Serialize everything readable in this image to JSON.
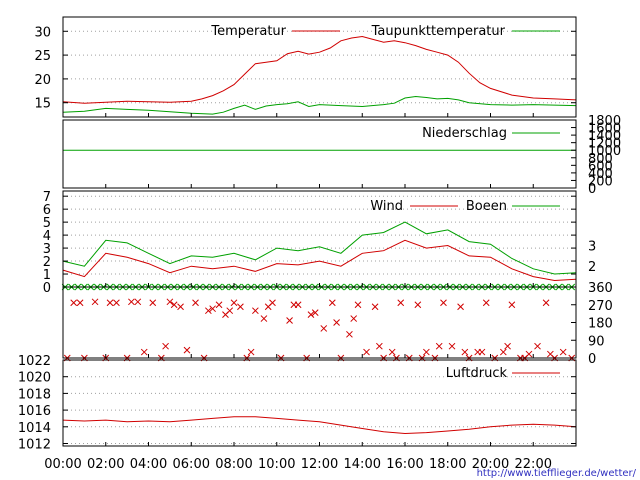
{
  "credit": "http://www.tiefflieger.de/wetter/",
  "colors": {
    "red": "#d00000",
    "green": "#00a000",
    "grid": "#a0a0a0",
    "axis": "#000000",
    "credit": "#3030c0"
  },
  "chart_data": [
    {
      "type": "line",
      "panel": "temperature",
      "x_range_hours": [
        0,
        24
      ],
      "ylim": [
        12,
        33
      ],
      "yticks": [
        15,
        20,
        25,
        30
      ],
      "grid": true,
      "legend_placement": "top",
      "series": [
        {
          "name": "Temperatur",
          "color": "#d00000",
          "x": [
            0,
            1,
            2,
            3,
            4,
            5,
            6,
            6.5,
            7,
            7.5,
            8,
            8.5,
            9,
            9.5,
            10,
            10.5,
            11,
            11.5,
            12,
            12.5,
            13,
            13.5,
            14,
            14.5,
            15,
            15.5,
            16,
            16.5,
            17,
            17.5,
            18,
            18.5,
            19,
            19.5,
            20,
            21,
            22,
            23,
            24
          ],
          "values": [
            15.2,
            14.9,
            15.1,
            15.3,
            15.2,
            15.1,
            15.3,
            15.8,
            16.5,
            17.5,
            18.8,
            21.0,
            23.2,
            23.5,
            23.8,
            25.3,
            25.8,
            25.2,
            25.6,
            26.5,
            28.0,
            28.6,
            28.9,
            28.3,
            27.7,
            28.0,
            27.6,
            27.0,
            26.2,
            25.6,
            25.0,
            23.5,
            21.2,
            19.2,
            18.0,
            16.6,
            16.0,
            15.8,
            15.6
          ]
        },
        {
          "name": "Taupunkttemperatur",
          "color": "#00a000",
          "x": [
            0,
            1,
            2,
            3,
            4,
            5,
            6,
            7,
            7.5,
            8,
            8.5,
            9,
            9.5,
            10,
            10.5,
            11,
            11.5,
            12,
            13,
            14,
            15,
            15.5,
            16,
            16.5,
            17,
            17.5,
            18,
            18.5,
            19,
            20,
            21,
            22,
            23,
            24
          ],
          "values": [
            13.0,
            13.2,
            13.8,
            13.6,
            13.4,
            13.1,
            12.8,
            12.6,
            13.0,
            13.8,
            14.5,
            13.6,
            14.3,
            14.6,
            14.8,
            15.2,
            14.2,
            14.6,
            14.4,
            14.2,
            14.6,
            14.9,
            16.0,
            16.3,
            16.1,
            15.8,
            15.9,
            15.6,
            15.0,
            14.6,
            14.5,
            14.6,
            14.5,
            14.4
          ]
        }
      ]
    },
    {
      "type": "line",
      "panel": "precipitation",
      "x_range_hours": [
        0,
        24
      ],
      "ylim": [
        0,
        1800
      ],
      "yticks": [
        0,
        200,
        400,
        600,
        800,
        1000,
        1200,
        1400,
        1600,
        1800
      ],
      "yticks_side": "right",
      "series": [
        {
          "name": "Niederschlag",
          "color": "#00a000",
          "x": [
            0,
            24
          ],
          "values": [
            1000,
            1000
          ]
        }
      ]
    },
    {
      "type": "line",
      "panel": "wind",
      "x_range_hours": [
        0,
        24
      ],
      "ylim": [
        0,
        7.4
      ],
      "yticks": [
        0,
        1,
        2,
        3,
        4,
        5,
        6,
        7
      ],
      "right_ticks": [
        {
          "label": "2",
          "value": 1.6
        },
        {
          "label": "3",
          "value": 3.2
        }
      ],
      "grid": true,
      "legend_placement": "top",
      "series": [
        {
          "name": "Wind",
          "color": "#d00000",
          "x": [
            0,
            1,
            2,
            3,
            4,
            5,
            6,
            7,
            8,
            9,
            10,
            11,
            12,
            13,
            14,
            15,
            16,
            17,
            18,
            19,
            20,
            21,
            22,
            23,
            24
          ],
          "values": [
            1.3,
            0.8,
            2.6,
            2.3,
            1.8,
            1.1,
            1.6,
            1.4,
            1.6,
            1.2,
            1.8,
            1.7,
            2.0,
            1.6,
            2.6,
            2.8,
            3.6,
            3.0,
            3.2,
            2.4,
            2.3,
            1.4,
            0.8,
            0.5,
            0.6
          ]
        },
        {
          "name": "Boeen",
          "color": "#00a000",
          "x": [
            0,
            1,
            2,
            3,
            4,
            5,
            6,
            7,
            8,
            9,
            10,
            11,
            12,
            13,
            14,
            15,
            16,
            17,
            18,
            19,
            20,
            21,
            22,
            23,
            24
          ],
          "values": [
            2.0,
            1.6,
            3.6,
            3.4,
            2.6,
            1.8,
            2.4,
            2.3,
            2.6,
            2.1,
            3.0,
            2.8,
            3.1,
            2.6,
            4.0,
            4.2,
            5.0,
            4.1,
            4.4,
            3.5,
            3.3,
            2.2,
            1.4,
            1.0,
            1.1
          ]
        }
      ]
    },
    {
      "type": "scatter",
      "panel": "wind_direction",
      "x_range_hours": [
        0,
        24
      ],
      "ylim": [
        0,
        360
      ],
      "yticks": [
        0,
        90,
        180,
        270,
        360
      ],
      "yticks_side": "right",
      "series": [
        {
          "name": "wind direction (red crosses)",
          "color": "#d00000",
          "x": [
            0.2,
            0.5,
            1.0,
            1.5,
            2.0,
            2.5,
            3.0,
            3.5,
            3.8,
            4.2,
            4.6,
            5.0,
            5.5,
            5.8,
            6.2,
            6.6,
            7.0,
            7.3,
            7.6,
            8.0,
            8.3,
            8.6,
            9.0,
            9.4,
            9.8,
            10.2,
            10.6,
            11.0,
            11.4,
            11.8,
            12.2,
            12.6,
            13.0,
            13.4,
            13.8,
            14.2,
            14.6,
            15.0,
            15.4,
            15.8,
            16.2,
            16.6,
            17.0,
            17.4,
            17.8,
            18.2,
            18.6,
            19.0,
            19.4,
            19.8,
            20.2,
            20.6,
            21.0,
            21.4,
            21.8,
            22.2,
            22.6,
            23.0,
            23.4,
            23.8,
            2.2,
            4.8,
            6.8,
            8.8,
            10.8,
            12.8,
            14.8,
            16.8,
            18.8,
            20.8,
            22.8,
            0.8,
            3.2,
            5.2,
            7.8,
            9.6,
            11.6,
            13.6,
            15.6,
            17.6,
            19.6,
            21.6
          ],
          "values": [
            0,
            280,
            0,
            285,
            0,
            280,
            0,
            285,
            30,
            280,
            0,
            285,
            260,
            40,
            280,
            0,
            250,
            270,
            220,
            280,
            260,
            0,
            240,
            200,
            280,
            0,
            190,
            270,
            0,
            230,
            150,
            280,
            0,
            120,
            270,
            30,
            260,
            0,
            30,
            280,
            0,
            270,
            30,
            0,
            280,
            60,
            260,
            0,
            30,
            280,
            0,
            30,
            270,
            0,
            20,
            60,
            280,
            0,
            30,
            0,
            280,
            60,
            240,
            30,
            270,
            180,
            60,
            0,
            30,
            60,
            20,
            280,
            285,
            270,
            240,
            260,
            220,
            200,
            0,
            60,
            30,
            0
          ]
        },
        {
          "name": "calm markers (green crosses)",
          "color": "#00a000",
          "x": [
            0.1,
            0.4,
            0.7,
            1.0,
            1.3,
            1.6,
            1.9,
            2.2,
            2.5,
            2.8,
            3.1,
            3.4,
            3.7,
            4.0,
            4.3,
            4.6,
            4.9,
            5.2,
            5.5,
            5.8,
            6.1,
            6.4,
            6.7,
            7.0,
            7.3,
            7.6,
            7.9,
            8.2,
            8.5,
            8.8,
            9.1,
            9.4,
            9.7,
            10.0,
            10.3,
            10.6,
            10.9,
            11.2,
            11.5,
            11.8,
            12.1,
            12.4,
            12.7,
            13.0,
            13.3,
            13.6,
            13.9,
            14.2,
            14.5,
            14.8,
            15.1,
            15.4,
            15.7,
            16.0,
            16.3,
            16.6,
            16.9,
            17.2,
            17.5,
            17.8,
            18.1,
            18.4,
            18.7,
            19.0,
            19.3,
            19.6,
            19.9,
            20.2,
            20.5,
            20.8,
            21.1,
            21.4,
            21.7,
            22.0,
            22.3,
            22.6,
            22.9,
            23.2,
            23.5,
            23.8
          ],
          "values": [
            360,
            360,
            360,
            360,
            360,
            360,
            360,
            360,
            360,
            360,
            360,
            360,
            360,
            360,
            360,
            360,
            360,
            360,
            360,
            360,
            360,
            360,
            360,
            360,
            360,
            360,
            360,
            360,
            360,
            360,
            360,
            360,
            360,
            360,
            360,
            360,
            360,
            360,
            360,
            360,
            360,
            360,
            360,
            360,
            360,
            360,
            360,
            360,
            360,
            360,
            360,
            360,
            360,
            360,
            360,
            360,
            360,
            360,
            360,
            360,
            360,
            360,
            360,
            360,
            360,
            360,
            360,
            360,
            360,
            360,
            360,
            360,
            360,
            360,
            360,
            360,
            360,
            360,
            360,
            360
          ]
        }
      ]
    },
    {
      "type": "line",
      "panel": "pressure",
      "x_range_hours": [
        0,
        24
      ],
      "ylim": [
        1011.7,
        1022.0
      ],
      "yticks": [
        1012,
        1014,
        1016,
        1018,
        1020,
        1022
      ],
      "grid": true,
      "legend_placement": "top-right",
      "xtick_labels": [
        "00:00",
        "02:00",
        "04:00",
        "06:00",
        "08:00",
        "10:00",
        "12:00",
        "14:00",
        "16:00",
        "18:00",
        "20:00",
        "22:00"
      ],
      "series": [
        {
          "name": "Luftdruck",
          "color": "#d00000",
          "x": [
            0,
            1,
            2,
            3,
            4,
            5,
            6,
            7,
            8,
            9,
            10,
            11,
            12,
            13,
            14,
            15,
            16,
            17,
            18,
            19,
            20,
            21,
            22,
            23,
            24
          ],
          "values": [
            1014.8,
            1014.7,
            1014.8,
            1014.6,
            1014.7,
            1014.6,
            1014.8,
            1015.0,
            1015.2,
            1015.2,
            1015.0,
            1014.8,
            1014.6,
            1014.2,
            1013.8,
            1013.4,
            1013.2,
            1013.3,
            1013.5,
            1013.7,
            1014.0,
            1014.2,
            1014.3,
            1014.2,
            1014.0
          ]
        }
      ]
    }
  ]
}
